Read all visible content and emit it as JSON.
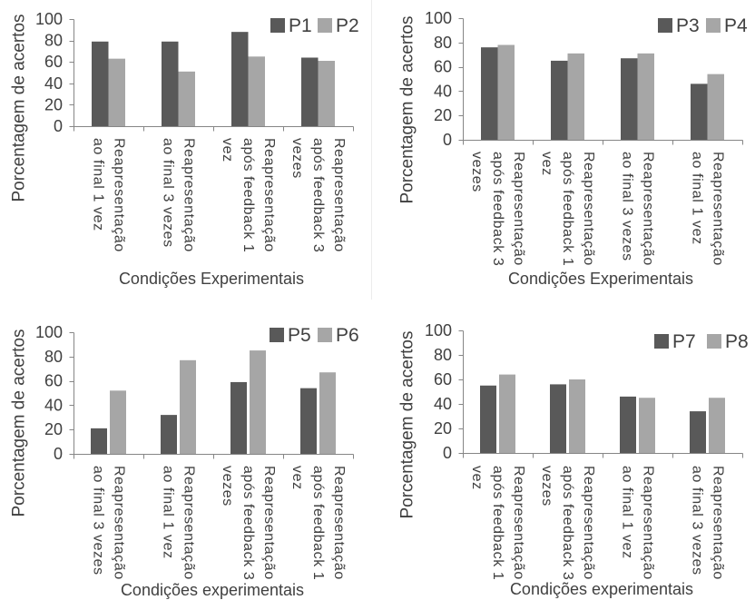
{
  "chart_data": [
    {
      "type": "bar",
      "ylabel": "Porcentagem de acertos",
      "xlabel": "Condições Experimentais",
      "ylim": [
        0,
        100
      ],
      "yticks": [
        0,
        20,
        40,
        60,
        80,
        100
      ],
      "grid": false,
      "legend": "top-right",
      "categories": [
        "Reapresentação\nao final 1 vez",
        "Reapresentação\nao final 3 vezes",
        "Reapresentação\napós feedback 1\nvez",
        "Reapresentação\napós feedback 3\nvezes"
      ],
      "series": [
        {
          "name": "P1",
          "color": "#595959",
          "values": [
            79,
            79,
            88,
            64
          ]
        },
        {
          "name": "P2",
          "color": "#a6a6a6",
          "values": [
            63,
            51,
            65,
            61
          ]
        }
      ]
    },
    {
      "type": "bar",
      "ylabel": "Porcentagem de acertos",
      "xlabel": "Condições Experimentais",
      "ylim": [
        0,
        100
      ],
      "yticks": [
        0,
        20,
        40,
        60,
        80,
        100
      ],
      "grid": false,
      "legend": "top-right",
      "categories": [
        "Reapresentação\napós feedback 3\nvezes",
        "Reapresentação\napós feedback 1\nvez",
        "Reapresentação\nao final 3 vezes",
        "Reapresentação\nao final 1 vez"
      ],
      "series": [
        {
          "name": "P3",
          "color": "#595959",
          "values": [
            76,
            65,
            67,
            46
          ]
        },
        {
          "name": "P4",
          "color": "#a6a6a6",
          "values": [
            78,
            71,
            71,
            54
          ]
        }
      ]
    },
    {
      "type": "bar",
      "ylabel": "Porcentagem de acertos",
      "xlabel": "Condições experimentais",
      "ylim": [
        0,
        100
      ],
      "yticks": [
        0,
        20,
        40,
        60,
        80,
        100
      ],
      "grid": false,
      "legend": "top-right",
      "categories": [
        "Reapresentação\nao final 3 vezes",
        "Reapresentação\nao final 1 vez",
        "Reapresentação\napós feedback 3\nvezes",
        "Reapresentação\napós feedback 1\nvez"
      ],
      "series": [
        {
          "name": "P5",
          "color": "#595959",
          "values": [
            21,
            32,
            59,
            54
          ]
        },
        {
          "name": "P6",
          "color": "#a6a6a6",
          "values": [
            52,
            77,
            85,
            67
          ]
        }
      ]
    },
    {
      "type": "bar",
      "ylabel": "Porcentagem de acertos",
      "xlabel": "Condições experimentais",
      "ylim": [
        0,
        100
      ],
      "yticks": [
        0,
        20,
        40,
        60,
        80,
        100
      ],
      "grid": false,
      "legend": "top-right",
      "categories": [
        "Reapresentação\napós feedback 1\nvez",
        "Reapresentação\napós feedback 3\nvezes",
        "Reapresentação\nao final 1 vez",
        "Reapresentação\nao final 3 vezes"
      ],
      "series": [
        {
          "name": "P7",
          "color": "#595959",
          "values": [
            55,
            56,
            46,
            34
          ]
        },
        {
          "name": "P8",
          "color": "#a6a6a6",
          "values": [
            64,
            60,
            45,
            45
          ]
        }
      ]
    }
  ]
}
